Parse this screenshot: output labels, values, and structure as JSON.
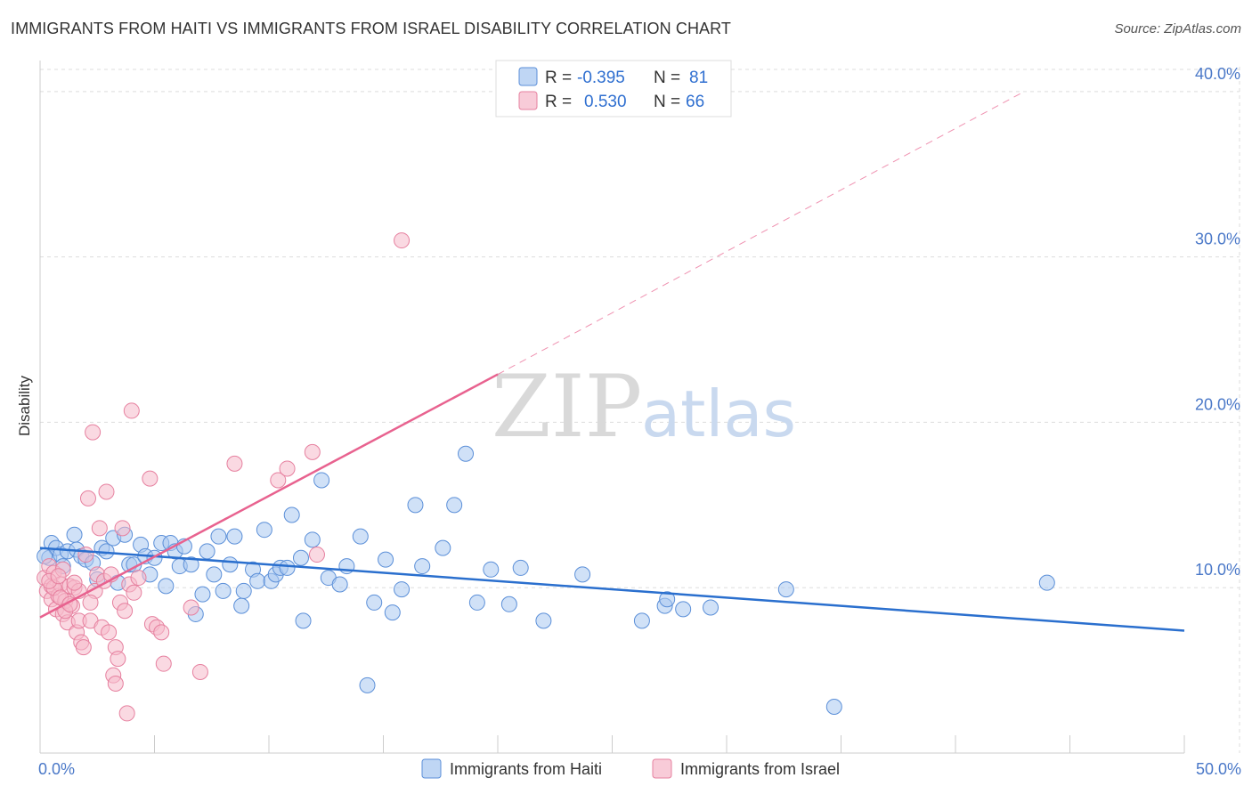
{
  "header": {
    "title": "IMMIGRANTS FROM HAITI VS IMMIGRANTS FROM ISRAEL DISABILITY CORRELATION CHART",
    "source": "Source: ZipAtlas.com"
  },
  "colors": {
    "haiti_fill": "#a9c8f0",
    "haiti_stroke": "#5b8fd8",
    "haiti_line": "#2a6fce",
    "israel_fill": "#f6b9cb",
    "israel_stroke": "#e6809f",
    "israel_line": "#e8628f",
    "axis_label": "#4a78c8",
    "grid": "#dddddd"
  },
  "legend": {
    "rows": [
      {
        "r_label": "R =",
        "r_value": "-0.395",
        "n_label": "N =",
        "n_value": "81"
      },
      {
        "r_label": "R =",
        "r_value": "0.530",
        "n_label": "N =",
        "n_value": "66"
      }
    ]
  },
  "watermark": {
    "zip": "ZIP",
    "atlas": "atlas"
  },
  "chart_data": {
    "type": "scatter",
    "xlabel": "",
    "ylabel": "Disability",
    "xlim": [
      0,
      50
    ],
    "ylim": [
      0,
      41.5
    ],
    "x_tick_labels": [
      {
        "value": 0,
        "label": "0.0%"
      },
      {
        "value": 50,
        "label": "50.0%"
      }
    ],
    "y_tick_labels": [
      {
        "value": 10,
        "label": "10.0%"
      },
      {
        "value": 20,
        "label": "20.0%"
      },
      {
        "value": 30,
        "label": "30.0%"
      },
      {
        "value": 40,
        "label": "40.0%"
      }
    ],
    "x_minor_ticks": [
      5,
      10,
      15,
      20,
      25,
      30,
      35,
      40,
      45,
      50
    ],
    "grid": true,
    "series": [
      {
        "name": "Immigrants from Haiti",
        "color_key": "haiti",
        "points": [
          [
            0.4,
            11.8
          ],
          [
            0.5,
            12.7
          ],
          [
            0.7,
            12.4
          ],
          [
            0.9,
            12.0
          ],
          [
            1.0,
            11.3
          ],
          [
            1.2,
            12.2
          ],
          [
            1.5,
            13.2
          ],
          [
            1.6,
            12.3
          ],
          [
            1.8,
            11.9
          ],
          [
            2.0,
            11.7
          ],
          [
            2.3,
            11.5
          ],
          [
            2.5,
            10.5
          ],
          [
            2.7,
            12.4
          ],
          [
            2.9,
            12.2
          ],
          [
            3.2,
            13.0
          ],
          [
            3.4,
            10.3
          ],
          [
            3.7,
            13.2
          ],
          [
            3.9,
            11.4
          ],
          [
            4.1,
            11.4
          ],
          [
            4.4,
            12.6
          ],
          [
            4.6,
            11.9
          ],
          [
            4.8,
            10.8
          ],
          [
            5.0,
            11.8
          ],
          [
            5.3,
            12.7
          ],
          [
            5.5,
            10.1
          ],
          [
            5.7,
            12.7
          ],
          [
            5.9,
            12.2
          ],
          [
            6.1,
            11.3
          ],
          [
            6.3,
            12.5
          ],
          [
            6.6,
            11.4
          ],
          [
            6.8,
            8.4
          ],
          [
            7.1,
            9.6
          ],
          [
            7.3,
            12.2
          ],
          [
            7.6,
            10.8
          ],
          [
            7.8,
            13.1
          ],
          [
            8.0,
            9.8
          ],
          [
            8.3,
            11.4
          ],
          [
            8.5,
            13.1
          ],
          [
            8.8,
            8.9
          ],
          [
            8.9,
            9.8
          ],
          [
            9.3,
            11.1
          ],
          [
            9.5,
            10.4
          ],
          [
            9.8,
            13.5
          ],
          [
            10.1,
            10.4
          ],
          [
            10.3,
            10.8
          ],
          [
            10.5,
            11.2
          ],
          [
            10.8,
            11.2
          ],
          [
            11.0,
            14.4
          ],
          [
            11.4,
            11.8
          ],
          [
            11.5,
            8.0
          ],
          [
            11.9,
            12.9
          ],
          [
            12.3,
            16.5
          ],
          [
            12.6,
            10.6
          ],
          [
            13.1,
            10.2
          ],
          [
            13.4,
            11.3
          ],
          [
            14.0,
            13.1
          ],
          [
            14.3,
            4.1
          ],
          [
            14.6,
            9.1
          ],
          [
            15.1,
            11.7
          ],
          [
            15.4,
            8.5
          ],
          [
            15.8,
            9.9
          ],
          [
            16.4,
            15.0
          ],
          [
            16.7,
            11.3
          ],
          [
            17.6,
            12.4
          ],
          [
            18.1,
            15.0
          ],
          [
            18.6,
            18.1
          ],
          [
            19.1,
            9.1
          ],
          [
            19.7,
            11.1
          ],
          [
            20.5,
            9.0
          ],
          [
            21.0,
            11.2
          ],
          [
            22.0,
            8.0
          ],
          [
            23.7,
            10.8
          ],
          [
            26.3,
            8.0
          ],
          [
            27.3,
            8.9
          ],
          [
            27.4,
            9.3
          ],
          [
            28.1,
            8.7
          ],
          [
            29.3,
            8.8
          ],
          [
            32.6,
            9.9
          ],
          [
            34.7,
            2.8
          ],
          [
            44.0,
            10.3
          ],
          [
            0.2,
            11.9
          ]
        ]
      },
      {
        "name": "Immigrants from Israel",
        "color_key": "israel",
        "points": [
          [
            0.2,
            10.6
          ],
          [
            0.3,
            9.8
          ],
          [
            0.4,
            11.3
          ],
          [
            0.5,
            10.1
          ],
          [
            0.5,
            9.3
          ],
          [
            0.6,
            10.9
          ],
          [
            0.7,
            8.7
          ],
          [
            0.8,
            9.5
          ],
          [
            0.9,
            10.2
          ],
          [
            1.0,
            8.4
          ],
          [
            1.0,
            11.1
          ],
          [
            1.1,
            9.2
          ],
          [
            1.2,
            7.9
          ],
          [
            1.3,
            10.1
          ],
          [
            1.4,
            8.9
          ],
          [
            1.5,
            10.0
          ],
          [
            1.6,
            7.3
          ],
          [
            1.7,
            8.0
          ],
          [
            1.8,
            6.7
          ],
          [
            1.9,
            6.4
          ],
          [
            2.0,
            12.0
          ],
          [
            2.1,
            15.4
          ],
          [
            2.2,
            8.0
          ],
          [
            2.3,
            19.4
          ],
          [
            2.4,
            9.8
          ],
          [
            2.5,
            10.8
          ],
          [
            2.6,
            13.6
          ],
          [
            2.7,
            7.6
          ],
          [
            2.8,
            10.4
          ],
          [
            2.9,
            15.8
          ],
          [
            3.0,
            7.3
          ],
          [
            3.1,
            10.8
          ],
          [
            3.2,
            4.7
          ],
          [
            3.3,
            6.4
          ],
          [
            3.3,
            4.2
          ],
          [
            3.4,
            5.7
          ],
          [
            3.5,
            9.1
          ],
          [
            3.6,
            13.6
          ],
          [
            3.7,
            8.6
          ],
          [
            3.8,
            2.4
          ],
          [
            3.9,
            10.2
          ],
          [
            4.0,
            20.7
          ],
          [
            4.1,
            9.7
          ],
          [
            4.3,
            10.6
          ],
          [
            4.8,
            16.6
          ],
          [
            4.9,
            7.8
          ],
          [
            5.1,
            7.6
          ],
          [
            5.3,
            7.3
          ],
          [
            5.4,
            5.4
          ],
          [
            6.6,
            8.8
          ],
          [
            7.0,
            4.9
          ],
          [
            8.5,
            17.5
          ],
          [
            10.4,
            16.5
          ],
          [
            10.8,
            17.2
          ],
          [
            11.9,
            18.2
          ],
          [
            12.1,
            12.0
          ],
          [
            15.8,
            31.0
          ],
          [
            0.6,
            10.0
          ],
          [
            0.9,
            9.4
          ],
          [
            1.1,
            8.6
          ],
          [
            1.3,
            9.0
          ],
          [
            1.7,
            9.8
          ],
          [
            2.2,
            9.1
          ],
          [
            0.4,
            10.4
          ],
          [
            0.8,
            10.7
          ],
          [
            1.5,
            10.3
          ]
        ]
      }
    ],
    "trend_lines": [
      {
        "series": "Immigrants from Haiti",
        "x": [
          0.0,
          50.0
        ],
        "y": [
          12.4,
          7.4
        ],
        "dashed": false
      },
      {
        "series": "Immigrants from Israel",
        "solid_x": [
          0.0,
          20.0
        ],
        "solid_y": [
          8.2,
          22.9
        ],
        "dashed_x": [
          20.0,
          43.0
        ],
        "dashed_y": [
          22.9,
          40.0
        ]
      }
    ],
    "legend": {
      "placement": "top-center",
      "bottom_placement": "bottom-center",
      "entries": [
        "Immigrants from Haiti",
        "Immigrants from Israel"
      ]
    }
  }
}
